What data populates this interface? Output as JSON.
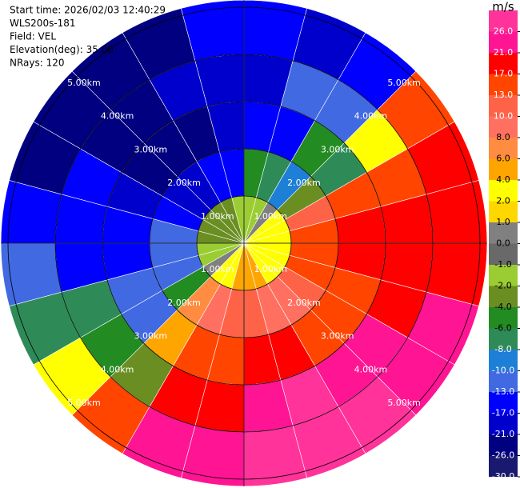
{
  "chart_data": {
    "type": "ppi",
    "info": [
      "Start time: 2026/02/03 12:40:29",
      "WLS200s-181",
      "Field: VEL",
      "Elevation(deg): 35.00",
      "NRays: 120"
    ],
    "azimuth_edges": [
      0,
      15,
      30,
      45,
      60,
      75,
      90,
      105,
      120,
      135,
      150,
      165,
      180,
      195,
      210,
      225,
      240,
      255,
      270,
      285,
      300,
      315,
      330,
      345,
      360
    ],
    "range_edges_km": [
      0,
      1,
      2,
      3,
      4,
      5.15
    ],
    "values": [
      [
        -1.5,
        -5,
        -15,
        -19,
        -15
      ],
      [
        -1.5,
        -7,
        -15,
        -11,
        -19
      ],
      [
        0.5,
        -9,
        -5,
        -11,
        -15
      ],
      [
        3,
        -3,
        -7,
        3,
        15
      ],
      [
        3,
        11,
        15,
        15,
        19
      ],
      [
        3,
        15,
        19,
        19,
        19
      ],
      [
        3,
        15,
        19,
        19,
        19
      ],
      [
        3,
        15,
        15,
        19,
        23
      ],
      [
        3,
        11,
        15,
        23,
        23
      ],
      [
        3,
        9,
        15,
        23,
        28
      ],
      [
        5,
        9,
        19,
        28,
        28
      ],
      [
        5,
        11,
        19,
        23,
        28
      ],
      [
        5,
        11,
        15,
        19,
        23
      ],
      [
        3,
        9,
        15,
        19,
        23
      ],
      [
        3,
        7,
        5,
        -3,
        15
      ],
      [
        0.5,
        -5,
        -11,
        -5,
        3
      ],
      [
        -1.5,
        -11,
        -11,
        -7,
        -7
      ],
      [
        -1.5,
        -11,
        -15,
        -15,
        -11
      ],
      [
        -3,
        -11,
        -15,
        -15,
        -15
      ],
      [
        -3,
        -15,
        -19,
        -15,
        -23
      ],
      [
        -3,
        -19,
        -23,
        -23,
        -23
      ],
      [
        -3,
        -19,
        -23,
        -23,
        -23
      ],
      [
        -3,
        -15,
        -23,
        -19,
        -23
      ],
      [
        -1.5,
        -15,
        -19,
        -19,
        -15
      ]
    ],
    "rings": [
      {
        "value": 1,
        "label": "1.00km"
      },
      {
        "value": 2,
        "label": "2.00km"
      },
      {
        "value": 3,
        "label": "3.00km"
      },
      {
        "value": 4,
        "label": "4.00km"
      },
      {
        "value": 5,
        "label": "5.00km"
      }
    ],
    "colorbar": {
      "label": "m/s",
      "clim": [
        -30,
        30
      ],
      "ticks": [
        {
          "value": -30,
          "label": "-30.0"
        },
        {
          "value": -26,
          "label": "-26.0"
        },
        {
          "value": -21,
          "label": "-21.0"
        },
        {
          "value": -17,
          "label": "-17.0"
        },
        {
          "value": -13,
          "label": "-13.0"
        },
        {
          "value": -10,
          "label": "-10.0"
        },
        {
          "value": -8,
          "label": "-8.0"
        },
        {
          "value": -6,
          "label": "-6.0"
        },
        {
          "value": -4,
          "label": "-4.0"
        },
        {
          "value": -2,
          "label": "-2.0"
        },
        {
          "value": -1,
          "label": "-1.0"
        },
        {
          "value": 0,
          "label": "0.0"
        },
        {
          "value": 1,
          "label": "1.0"
        },
        {
          "value": 2,
          "label": "2.0"
        },
        {
          "value": 4,
          "label": "4.0"
        },
        {
          "value": 6,
          "label": "6.0"
        },
        {
          "value": 8,
          "label": "8.0"
        },
        {
          "value": 10,
          "label": "10.0"
        },
        {
          "value": 13,
          "label": "13.0"
        },
        {
          "value": 17,
          "label": "17.0"
        },
        {
          "value": 21,
          "label": "21.0"
        },
        {
          "value": 26,
          "label": "26.0"
        }
      ],
      "colors": [
        "#191970",
        "#000080",
        "#0000cd",
        "#0000ff",
        "#4169e1",
        "#1e7fd6",
        "#2e8b57",
        "#228b22",
        "#6b8e23",
        "#9acd32",
        "#696969",
        "#808080",
        "#ffd700",
        "#ffff00",
        "#ffa500",
        "#ff8c40",
        "#ff7060",
        "#ff6347",
        "#ff4500",
        "#ff0000",
        "#ff1493",
        "#ff3399"
      ]
    }
  }
}
